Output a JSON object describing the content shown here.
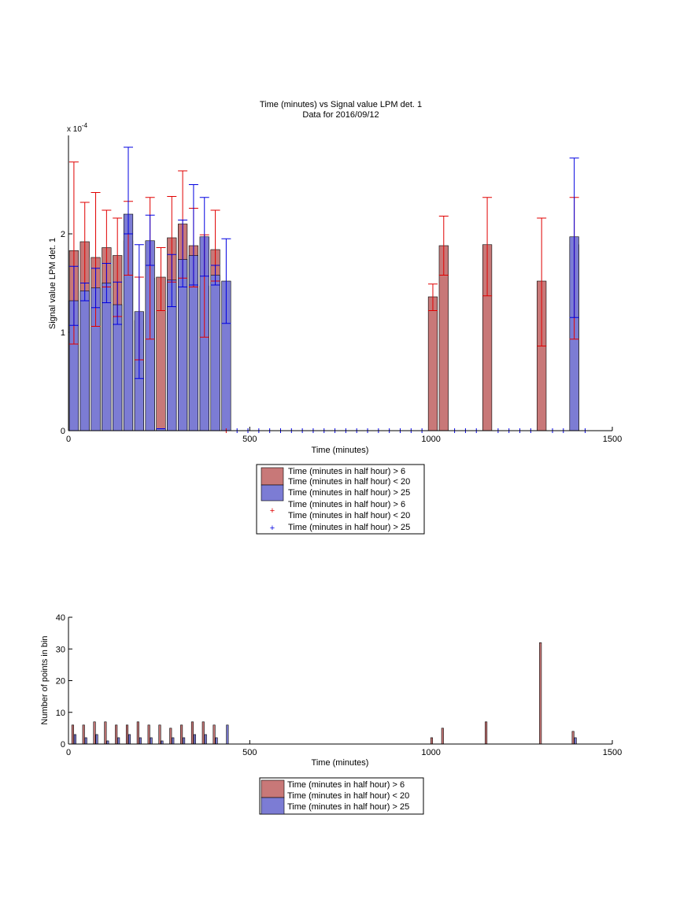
{
  "colors": {
    "red_bar": "#c87878",
    "blue_bar": "#7c7cd4",
    "red_err": "#e00000",
    "blue_err": "#0000e0",
    "axis": "#000000"
  },
  "chart_data": [
    {
      "type": "bar",
      "title": "Time (minutes) vs Signal value LPM det. 1",
      "subtitle": "Data for 2016/09/12",
      "xlabel": "Time (minutes)",
      "ylabel": "Signal value LPM det. 1",
      "yscale_label": "x 10^-4",
      "yscale_exp": "-4",
      "xlim": [
        0,
        1500
      ],
      "ylim": [
        0,
        3.0
      ],
      "xticks": [
        0,
        500,
        1000,
        1500
      ],
      "yticks": [
        0,
        1,
        2
      ],
      "legend": [
        "Time (minutes in half hour) > 6",
        "Time (minutes in half hour) < 20",
        "Time (minutes in half hour) > 25",
        "Time (minutes in half hour) > 6",
        "Time (minutes in half hour) < 20",
        "Time (minutes in half hour) > 25"
      ],
      "legend_position": "below",
      "series": [
        {
          "name": "red bars",
          "x": [
            15,
            45,
            75,
            105,
            135,
            165,
            195,
            225,
            255,
            285,
            315,
            345,
            375,
            405,
            1005,
            1035,
            1155,
            1305,
            1395
          ],
          "values": [
            1.83,
            1.92,
            1.76,
            1.86,
            1.78,
            1.93,
            1.12,
            1.55,
            1.56,
            1.96,
            2.1,
            1.88,
            1.47,
            1.84,
            1.36,
            1.88,
            1.89,
            1.52,
            1.89
          ],
          "err_low": [
            0.95,
            0.42,
            0.7,
            0.4,
            0.62,
            0.35,
            0.4,
            0.62,
            0.34,
            0.45,
            0.55,
            0.42,
            0.52,
            0.32,
            0.14,
            0.3,
            0.52,
            0.66,
            0.96
          ],
          "err_high": [
            0.9,
            0.4,
            0.66,
            0.38,
            0.38,
            0.4,
            0.44,
            0.82,
            0.3,
            0.42,
            0.54,
            0.38,
            0.52,
            0.4,
            0.13,
            0.3,
            0.48,
            0.64,
            0.48
          ]
        },
        {
          "name": "blue bars",
          "x": [
            15,
            45,
            75,
            105,
            135,
            165,
            195,
            225,
            255,
            285,
            315,
            345,
            375,
            405,
            435,
            1395
          ],
          "values": [
            1.32,
            1.42,
            1.45,
            1.5,
            1.28,
            2.2,
            1.21,
            1.93,
            0.02,
            1.53,
            1.74,
            1.78,
            1.97,
            1.58,
            1.52,
            1.97
          ],
          "err_low": [
            0.25,
            0.1,
            0.2,
            0.2,
            0.2,
            0.2,
            0.68,
            0.25,
            0.0,
            0.27,
            0.28,
            0.3,
            0.4,
            0.1,
            0.43,
            0.82
          ],
          "err_high": [
            0.35,
            0.08,
            0.2,
            0.2,
            0.23,
            0.68,
            0.68,
            0.26,
            0.0,
            0.26,
            0.4,
            0.72,
            0.4,
            0.1,
            0.43,
            0.8
          ]
        },
        {
          "name": "red zero markers",
          "x": [
            435
          ],
          "values": [
            0
          ]
        },
        {
          "name": "blue zero markers",
          "x": [
            465,
            495,
            525,
            555,
            585,
            615,
            645,
            675,
            705,
            735,
            765,
            795,
            825,
            855,
            885,
            915,
            945,
            975,
            1065,
            1095,
            1125,
            1185,
            1215,
            1245,
            1275,
            1335,
            1365,
            1425
          ],
          "values": [
            0,
            0,
            0,
            0,
            0,
            0,
            0,
            0,
            0,
            0,
            0,
            0,
            0,
            0,
            0,
            0,
            0,
            0,
            0,
            0,
            0,
            0,
            0,
            0,
            0,
            0,
            0,
            0
          ]
        }
      ]
    },
    {
      "type": "bar",
      "title": "",
      "xlabel": "Time (minutes)",
      "ylabel": "Number of points in bin",
      "xlim": [
        0,
        1500
      ],
      "ylim": [
        0,
        40
      ],
      "xticks": [
        0,
        500,
        1000,
        1500
      ],
      "yticks": [
        0,
        10,
        20,
        30,
        40
      ],
      "legend": [
        "Time (minutes in half hour) > 6",
        "Time (minutes in half hour) < 20",
        "Time (minutes in half hour) > 25"
      ],
      "legend_position": "below",
      "series": [
        {
          "name": "red counts",
          "x": [
            15,
            45,
            75,
            105,
            135,
            165,
            195,
            225,
            255,
            285,
            315,
            345,
            375,
            405,
            1005,
            1035,
            1155,
            1305,
            1395
          ],
          "values": [
            6,
            6,
            7,
            7,
            6,
            6,
            7,
            6,
            6,
            5,
            6,
            7,
            7,
            6,
            2,
            5,
            7,
            32,
            4
          ]
        },
        {
          "name": "blue counts",
          "x": [
            15,
            45,
            75,
            105,
            135,
            165,
            195,
            225,
            255,
            285,
            315,
            345,
            375,
            405,
            435,
            1395
          ],
          "values": [
            3,
            2,
            3,
            1,
            2,
            3,
            2,
            2,
            1,
            2,
            2,
            3,
            3,
            2,
            6,
            2
          ]
        }
      ]
    }
  ]
}
